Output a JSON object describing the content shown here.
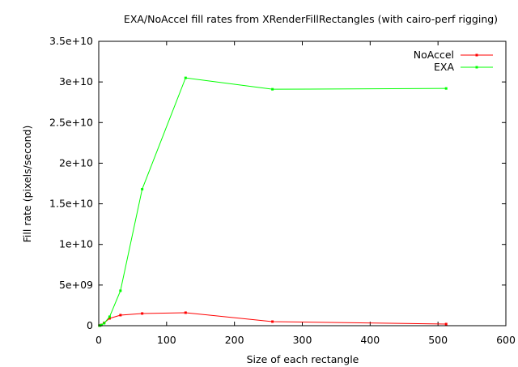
{
  "chart_data": {
    "type": "line",
    "title": "EXA/NoAccel fill rates from XRenderFillRectangles (with cairo-perf rigging)",
    "xlabel": "Size of each rectangle",
    "ylabel": "Fill rate (pixels/second)",
    "xlim": [
      0,
      600
    ],
    "ylim": [
      0,
      35000000000
    ],
    "x_ticks": [
      0,
      100,
      200,
      300,
      400,
      500,
      600
    ],
    "y_ticks": [
      0,
      5000000000,
      10000000000,
      15000000000,
      20000000000,
      25000000000,
      30000000000,
      35000000000
    ],
    "x_tick_labels": [
      "0",
      "100",
      "200",
      "300",
      "400",
      "500",
      "600"
    ],
    "y_tick_labels": [
      "0",
      "5e+09",
      "1e+10",
      "1.5e+10",
      "2e+10",
      "2.5e+10",
      "3e+10",
      "3.5e+10"
    ],
    "grid": false,
    "legend_position": "top-right",
    "series": [
      {
        "name": "NoAccel",
        "color": "#ff0000",
        "points": [
          [
            1,
            5000000
          ],
          [
            2,
            30000000
          ],
          [
            4,
            100000000
          ],
          [
            8,
            350000000
          ],
          [
            16,
            900000000
          ],
          [
            32,
            1300000000
          ],
          [
            64,
            1500000000
          ],
          [
            128,
            1600000000
          ],
          [
            256,
            500000000
          ],
          [
            512,
            200000000
          ]
        ]
      },
      {
        "name": "EXA",
        "color": "#00ff00",
        "points": [
          [
            1,
            5000000
          ],
          [
            2,
            20000000
          ],
          [
            4,
            80000000
          ],
          [
            8,
            300000000
          ],
          [
            16,
            1100000000
          ],
          [
            32,
            4300000000
          ],
          [
            64,
            16800000000
          ],
          [
            128,
            30500000000
          ],
          [
            256,
            29100000000
          ],
          [
            512,
            29200000000
          ]
        ]
      }
    ]
  }
}
